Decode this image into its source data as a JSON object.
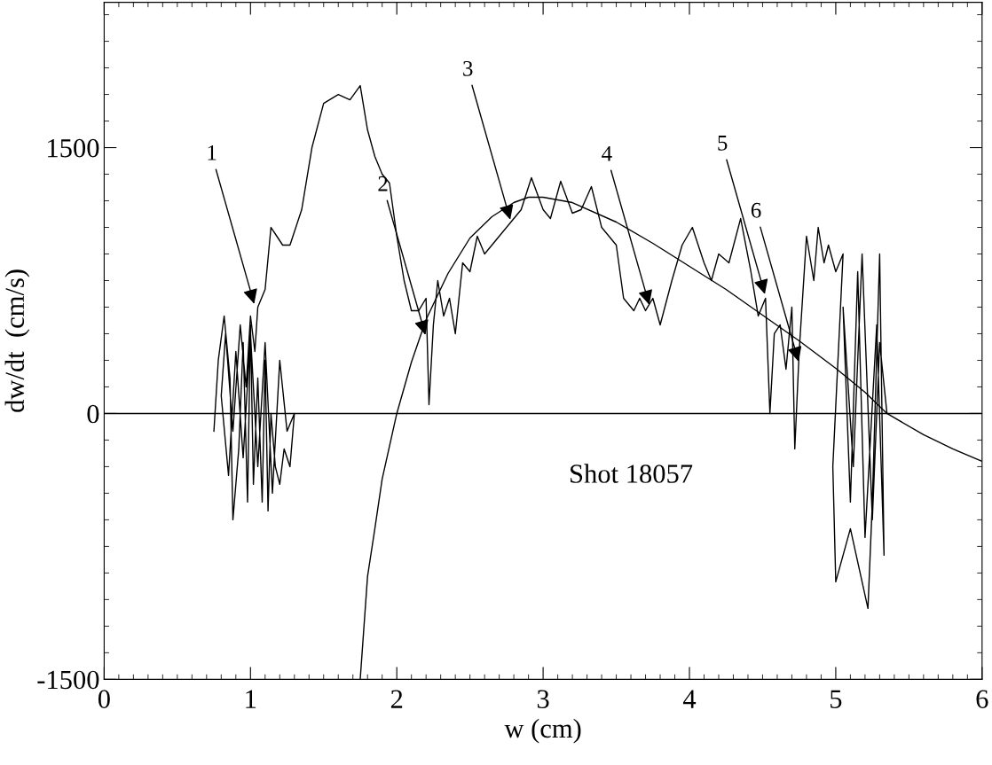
{
  "chart_data": {
    "type": "line",
    "xlabel": "w (cm)",
    "ylabel": "dw/dt  (cm/s)",
    "xlim": [
      0,
      6
    ],
    "ylim": [
      -1500,
      2320
    ],
    "xticks": [
      0,
      1,
      2,
      3,
      4,
      5,
      6
    ],
    "yticks": [
      {
        "value": -1500,
        "label": "-1500"
      },
      0,
      1500
    ],
    "grid": false,
    "legend": false,
    "marker": "none",
    "line_style": "solid",
    "series": [
      {
        "color": "#000000",
        "x": [
          0.75,
          0.78,
          0.82,
          0.86,
          0.88,
          0.92,
          0.95,
          0.98,
          1.0,
          1.02,
          1.05,
          1.08,
          1.1,
          1.12,
          1.14,
          1.17,
          1.2,
          1.23,
          1.27,
          1.3,
          1.25,
          1.2,
          1.15,
          1.1,
          1.05,
          1.0,
          0.95,
          0.9,
          0.85,
          0.8,
          0.83,
          0.88,
          0.93,
          0.97,
          1.0,
          1.03,
          1.05,
          1.1,
          1.14,
          1.18,
          1.22,
          1.27,
          1.35,
          1.42,
          1.5,
          1.6,
          1.68,
          1.75,
          1.8,
          1.85,
          1.9,
          1.95,
          2.0,
          2.05,
          2.1,
          2.15,
          2.2,
          2.22,
          2.25,
          2.28,
          2.32,
          2.36,
          2.4,
          2.45,
          2.5,
          2.55,
          2.6,
          2.65,
          2.7,
          2.78,
          2.85,
          2.92,
          3.0,
          3.05,
          3.12,
          3.2,
          3.26,
          3.33,
          3.4,
          3.45,
          3.5,
          3.55,
          3.62,
          3.66,
          3.7,
          3.75,
          3.8,
          3.88,
          3.95,
          4.02,
          4.1,
          4.15,
          4.2,
          4.27,
          4.35,
          4.42,
          4.47,
          4.52,
          4.55,
          4.58,
          4.62,
          4.66,
          4.7,
          4.72,
          4.75,
          4.8,
          4.85,
          4.88,
          4.92,
          4.95,
          5.0,
          5.05,
          4.98,
          5.0,
          5.1,
          5.22,
          5.25,
          5.3,
          5.33,
          5.28,
          5.2,
          5.15,
          5.1,
          5.05,
          5.12,
          5.18,
          5.25,
          5.3,
          5.35
        ],
        "values": [
          -100,
          300,
          550,
          200,
          -600,
          -200,
          400,
          -500,
          500,
          -400,
          200,
          -500,
          300,
          -550,
          0,
          -300,
          -400,
          -200,
          -300,
          0,
          -100,
          300,
          -450,
          400,
          -300,
          450,
          -250,
          350,
          -350,
          100,
          450,
          -100,
          500,
          150,
          550,
          350,
          600,
          700,
          1050,
          1000,
          950,
          950,
          1150,
          1500,
          1750,
          1800,
          1770,
          1850,
          1600,
          1450,
          1350,
          1300,
          1000,
          750,
          580,
          580,
          650,
          50,
          500,
          750,
          550,
          650,
          450,
          850,
          800,
          1000,
          900,
          950,
          1000,
          1080,
          1150,
          1330,
          1150,
          1100,
          1310,
          1130,
          1150,
          1280,
          1050,
          1000,
          950,
          650,
          580,
          650,
          580,
          650,
          500,
          750,
          950,
          1050,
          850,
          750,
          900,
          850,
          1100,
          800,
          550,
          650,
          0,
          450,
          500,
          250,
          600,
          -200,
          350,
          1000,
          750,
          1050,
          850,
          950,
          800,
          900,
          -300,
          -950,
          -650,
          -1100,
          -500,
          900,
          -800,
          500,
          -700,
          800,
          -500,
          600,
          -300,
          900,
          -600,
          400,
          0
        ]
      },
      {
        "color": "#000000",
        "x": [
          1.75,
          1.8,
          1.85,
          1.9,
          2.0,
          2.1,
          2.2,
          2.35,
          2.5,
          2.65,
          2.8,
          2.9,
          3.0,
          3.2,
          3.5,
          3.75,
          4.0,
          4.25,
          4.5,
          4.75,
          5.0,
          5.2,
          5.35,
          5.6,
          5.8,
          6.0
        ],
        "values": [
          -1500,
          -920,
          -650,
          -370,
          0,
          290,
          530,
          790,
          990,
          1110,
          1190,
          1220,
          1220,
          1190,
          1080,
          960,
          830,
          700,
          555,
          410,
          255,
          120,
          0,
          -120,
          -200,
          -270
        ]
      }
    ],
    "ref_lines": [
      {
        "axis": "y",
        "value": 0,
        "color": "#000000",
        "line_style": "solid"
      }
    ],
    "annotations": [
      {
        "text": "1",
        "x": 1.03,
        "y": 605
      },
      {
        "text": "2",
        "x": 2.2,
        "y": 430
      },
      {
        "text": "3",
        "x": 2.78,
        "y": 1080
      },
      {
        "text": "4",
        "x": 3.73,
        "y": 600
      },
      {
        "text": "5",
        "x": 4.52,
        "y": 660
      },
      {
        "text": "6",
        "x": 4.75,
        "y": 280
      },
      "Shot 18057"
    ]
  }
}
